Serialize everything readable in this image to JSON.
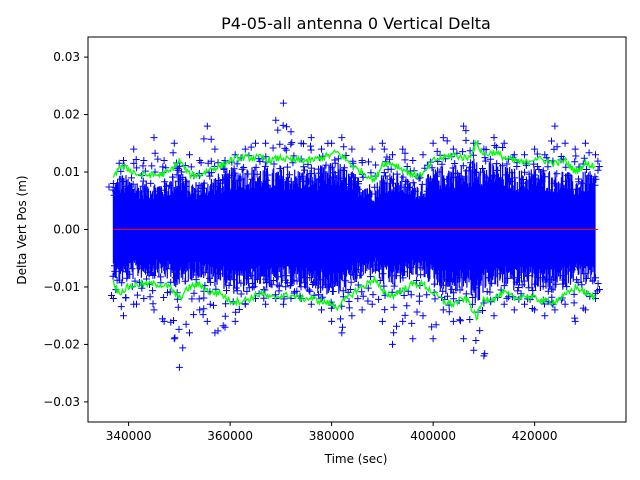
{
  "chart_data": {
    "type": "scatter",
    "title": "P4-05-all antenna 0 Vertical Delta",
    "xlabel": "Time (sec)",
    "ylabel": "Delta Vert Pos (m)",
    "xlim": [
      332000,
      438000
    ],
    "ylim": [
      -0.0335,
      0.0335
    ],
    "xticks": [
      340000,
      360000,
      380000,
      400000,
      420000
    ],
    "xtick_labels": [
      "340000",
      "360000",
      "380000",
      "400000",
      "420000"
    ],
    "yticks": [
      -0.03,
      -0.02,
      -0.01,
      0.0,
      0.01,
      0.02,
      0.03
    ],
    "ytick_labels": [
      "−0.03",
      "−0.02",
      "−0.01",
      "0.00",
      "0.01",
      "0.02",
      "0.03"
    ],
    "grid": false,
    "colors": {
      "residuals": "#0000ff",
      "sigma_band": "#00ff00",
      "zero_line": "#ff0000"
    },
    "series": [
      {
        "role": "residuals",
        "marker": "+",
        "x": [
          337000,
          339000,
          341000,
          343000,
          345000,
          347000,
          349000,
          350000,
          352000,
          354000,
          355500,
          357000,
          359000,
          361000,
          363000,
          365000,
          367000,
          369000,
          370500,
          372000,
          374000,
          376000,
          378000,
          380000,
          382000,
          384000,
          386000,
          388000,
          390000,
          392000,
          394000,
          396000,
          398000,
          400000,
          402000,
          404000,
          406000,
          408000,
          410000,
          412000,
          414000,
          416000,
          418000,
          420000,
          422000,
          424000,
          426000,
          428000,
          430000,
          432000
        ],
        "y_max": [
          0.008,
          0.012,
          0.014,
          0.012,
          0.016,
          0.012,
          0.015,
          0.011,
          0.013,
          0.012,
          0.018,
          0.014,
          0.012,
          0.013,
          0.014,
          0.015,
          0.015,
          0.019,
          0.022,
          0.017,
          0.015,
          0.016,
          0.014,
          0.015,
          0.016,
          0.014,
          0.012,
          0.014,
          0.015,
          0.013,
          0.014,
          0.012,
          0.013,
          0.015,
          0.016,
          0.014,
          0.018,
          0.015,
          0.014,
          0.016,
          0.015,
          0.013,
          0.013,
          0.014,
          0.013,
          0.018,
          0.015,
          0.014,
          0.015,
          0.013
        ],
        "y_min": [
          -0.012,
          -0.015,
          -0.013,
          -0.012,
          -0.014,
          -0.016,
          -0.019,
          -0.024,
          -0.018,
          -0.014,
          -0.016,
          -0.018,
          -0.017,
          -0.016,
          -0.013,
          -0.012,
          -0.013,
          -0.012,
          -0.013,
          -0.012,
          -0.012,
          -0.013,
          -0.014,
          -0.016,
          -0.018,
          -0.015,
          -0.014,
          -0.013,
          -0.016,
          -0.02,
          -0.016,
          -0.019,
          -0.015,
          -0.019,
          -0.014,
          -0.016,
          -0.019,
          -0.021,
          -0.022,
          -0.015,
          -0.013,
          -0.014,
          -0.013,
          -0.014,
          -0.015,
          -0.014,
          -0.013,
          -0.016,
          -0.014,
          -0.012
        ]
      },
      {
        "role": "sigma_band",
        "x": [
          337000,
          338000,
          340000,
          342000,
          344000,
          346000,
          348000,
          350000,
          352000,
          354000,
          356000,
          358000,
          360000,
          362000,
          364000,
          366000,
          368000,
          370000,
          372000,
          374000,
          376000,
          378000,
          380000,
          381000,
          383000,
          385000,
          387000,
          388500,
          390000,
          392000,
          394000,
          396000,
          398000,
          400000,
          402000,
          404000,
          406000,
          407000,
          408500,
          410000,
          412000,
          414000,
          416000,
          418000,
          420000,
          422000,
          424000,
          426000,
          428000,
          430000,
          432000
        ],
        "upper": [
          0.0085,
          0.011,
          0.0105,
          0.0095,
          0.0095,
          0.0095,
          0.01,
          0.012,
          0.0095,
          0.0095,
          0.0105,
          0.011,
          0.012,
          0.0125,
          0.0125,
          0.0125,
          0.012,
          0.0125,
          0.012,
          0.012,
          0.012,
          0.0125,
          0.013,
          0.0135,
          0.012,
          0.0105,
          0.0095,
          0.0085,
          0.0115,
          0.0115,
          0.0105,
          0.0095,
          0.0095,
          0.012,
          0.0125,
          0.013,
          0.0125,
          0.0125,
          0.015,
          0.013,
          0.0135,
          0.0125,
          0.012,
          0.0115,
          0.0125,
          0.012,
          0.0115,
          0.012,
          0.01,
          0.0115,
          0.011
        ],
        "lower": [
          -0.009,
          -0.011,
          -0.01,
          -0.0095,
          -0.0095,
          -0.0095,
          -0.01,
          -0.012,
          -0.01,
          -0.0095,
          -0.011,
          -0.011,
          -0.0125,
          -0.0125,
          -0.012,
          -0.011,
          -0.012,
          -0.0115,
          -0.0115,
          -0.012,
          -0.012,
          -0.0125,
          -0.013,
          -0.0135,
          -0.012,
          -0.0105,
          -0.0095,
          -0.0085,
          -0.011,
          -0.0115,
          -0.0105,
          -0.0095,
          -0.0095,
          -0.011,
          -0.0125,
          -0.013,
          -0.012,
          -0.0125,
          -0.0155,
          -0.012,
          -0.012,
          -0.011,
          -0.012,
          -0.0115,
          -0.012,
          -0.0125,
          -0.0125,
          -0.0115,
          -0.01,
          -0.011,
          -0.012
        ]
      },
      {
        "role": "zero_line",
        "x": [
          337000,
          432500
        ],
        "y": [
          0.0,
          0.0
        ]
      }
    ]
  }
}
